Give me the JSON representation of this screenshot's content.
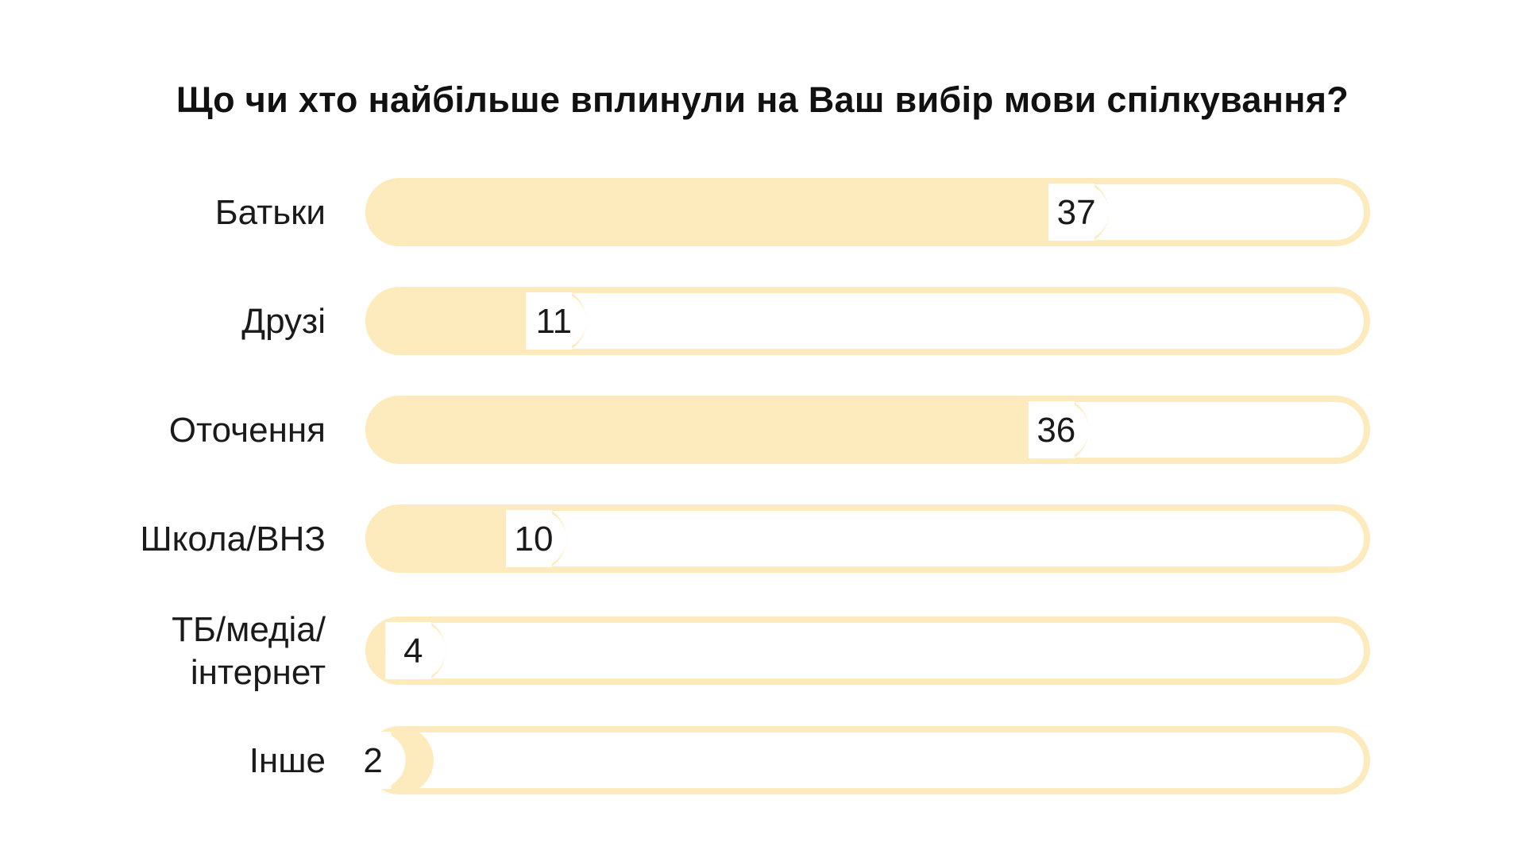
{
  "chart_data": {
    "type": "bar",
    "orientation": "horizontal",
    "title": "Що чи хто найбільше вплинули на Ваш вибір мови спілкування?",
    "categories": [
      "Батьки",
      "Друзі",
      "Оточення",
      "Школа/ВНЗ",
      "ТБ/медіа/ інтернет",
      "Інше"
    ],
    "category_lines": [
      [
        "Батьки"
      ],
      [
        "Друзі"
      ],
      [
        "Оточення"
      ],
      [
        "Школа/ВНЗ"
      ],
      [
        "ТБ/медіа/",
        "інтернет"
      ],
      [
        "Інше"
      ]
    ],
    "values": [
      37,
      11,
      36,
      10,
      4,
      2
    ],
    "xlim": [
      0,
      50
    ],
    "grid": false,
    "legend": "none",
    "colors": {
      "fill": "#FDEBBD",
      "track_border": "#FDEBBD",
      "track_bg": "#FFFFFF",
      "label_box": "#FFFFFF",
      "text": "#1A1A1A"
    }
  }
}
